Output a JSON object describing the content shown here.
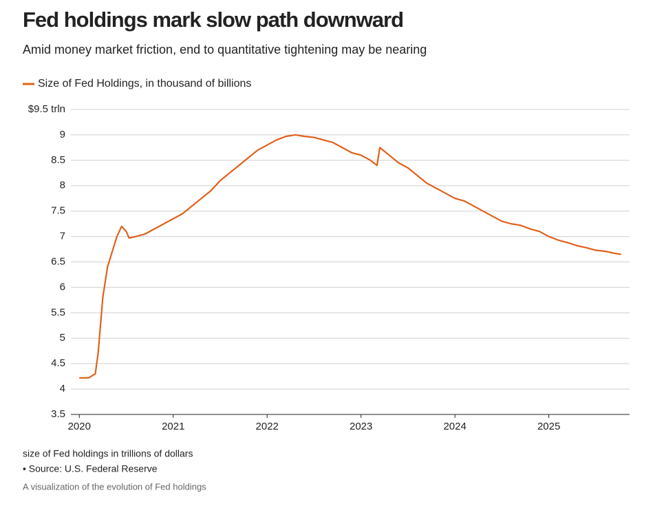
{
  "chart_data": {
    "type": "line",
    "title": "Fed holdings mark slow path downward",
    "subtitle": "Amid money market friction, end to quantitative tightening may be nearing",
    "note": "size of Fed holdings in trillions of dollars",
    "source": "• Source: U.S. Federal Reserve",
    "caption": "A visualization of the evolution of Fed holdings",
    "x": [
      2020.0,
      2020.1,
      2020.17,
      2020.2,
      2020.25,
      2020.3,
      2020.35,
      2020.4,
      2020.45,
      2020.5,
      2020.53,
      2020.6,
      2020.7,
      2020.8,
      2020.9,
      2021.0,
      2021.1,
      2021.2,
      2021.3,
      2021.4,
      2021.5,
      2021.6,
      2021.7,
      2021.8,
      2021.9,
      2022.0,
      2022.1,
      2022.2,
      2022.3,
      2022.4,
      2022.5,
      2022.6,
      2022.7,
      2022.8,
      2022.9,
      2023.0,
      2023.1,
      2023.17,
      2023.2,
      2023.3,
      2023.4,
      2023.5,
      2023.6,
      2023.7,
      2023.8,
      2023.9,
      2024.0,
      2024.1,
      2024.2,
      2024.3,
      2024.4,
      2024.5,
      2024.6,
      2024.7,
      2024.8,
      2024.9,
      2025.0,
      2025.1,
      2025.2,
      2025.3,
      2025.4,
      2025.5,
      2025.6,
      2025.7,
      2025.77
    ],
    "series": [
      {
        "name": "Size of Fed Holdings, in thousand of billions",
        "color": "#e0601a",
        "values": [
          4.22,
          4.22,
          4.3,
          4.7,
          5.8,
          6.4,
          6.7,
          7.0,
          7.2,
          7.1,
          6.97,
          7.0,
          7.05,
          7.15,
          7.25,
          7.35,
          7.45,
          7.6,
          7.75,
          7.9,
          8.1,
          8.25,
          8.4,
          8.55,
          8.7,
          8.8,
          8.9,
          8.97,
          9.0,
          8.97,
          8.95,
          8.9,
          8.85,
          8.75,
          8.65,
          8.6,
          8.5,
          8.4,
          8.75,
          8.6,
          8.45,
          8.35,
          8.2,
          8.05,
          7.95,
          7.85,
          7.75,
          7.7,
          7.6,
          7.5,
          7.4,
          7.3,
          7.25,
          7.22,
          7.15,
          7.1,
          7.0,
          6.93,
          6.88,
          6.82,
          6.78,
          6.73,
          6.71,
          6.67,
          6.65
        ]
      }
    ],
    "xlim": [
      2019.91,
      2025.86
    ],
    "xticks": [
      2020,
      2021,
      2022,
      2023,
      2024,
      2025
    ],
    "ylim": [
      3.5,
      9.5
    ],
    "yticks": [
      3.5,
      4,
      4.5,
      5,
      5.5,
      6,
      6.5,
      7,
      7.5,
      8,
      8.5,
      9,
      {
        "value": 9.5,
        "label": "$9.5 trln"
      }
    ],
    "grid": true
  }
}
